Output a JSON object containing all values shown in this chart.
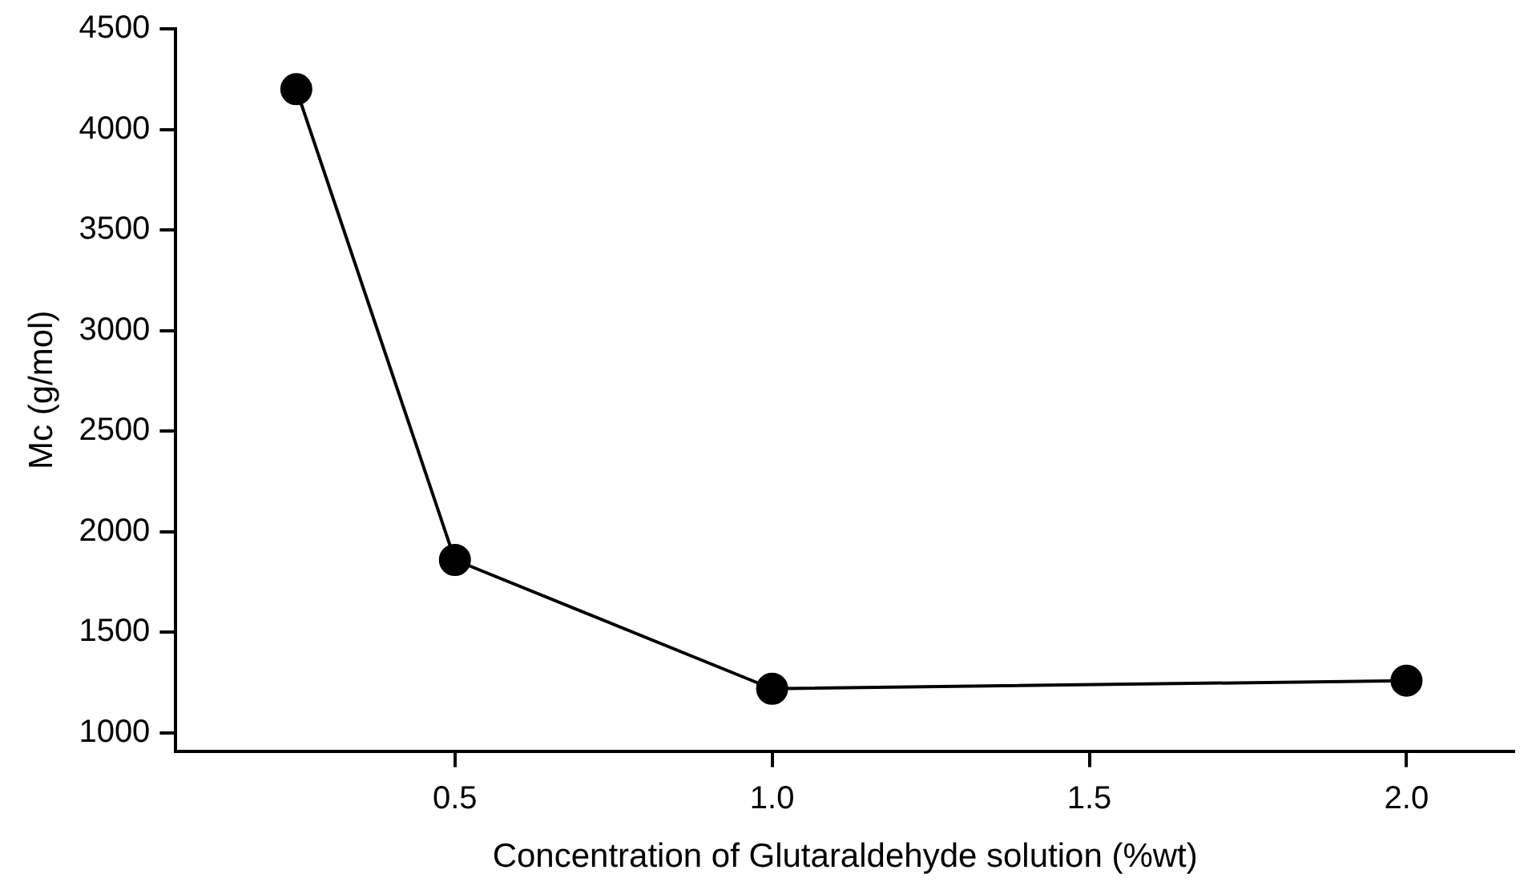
{
  "chart_data": {
    "type": "line",
    "xlabel": "Concentration of Glutaraldehyde solution (%wt)",
    "ylabel": "Mc (g/mol)",
    "x": [
      0.25,
      0.5,
      1.0,
      2.0
    ],
    "series": [
      {
        "color": "#000000",
        "values": [
          4200,
          1860,
          1220,
          1260
        ]
      }
    ],
    "xlim": [
      0.06,
      2.17
    ],
    "ylim": [
      910,
      4500
    ],
    "xticks": [
      {
        "value": 0.5,
        "label": "0.5"
      },
      {
        "value": 1.0,
        "label": "1.0"
      },
      {
        "value": 1.5,
        "label": "1.5"
      },
      {
        "value": 2.0,
        "label": "2.0"
      }
    ],
    "yticks": [
      1000,
      1500,
      2000,
      2500,
      3000,
      3500,
      4000,
      4500
    ],
    "grid": false,
    "legend": false,
    "marker": "circle",
    "line_style": "solid"
  }
}
